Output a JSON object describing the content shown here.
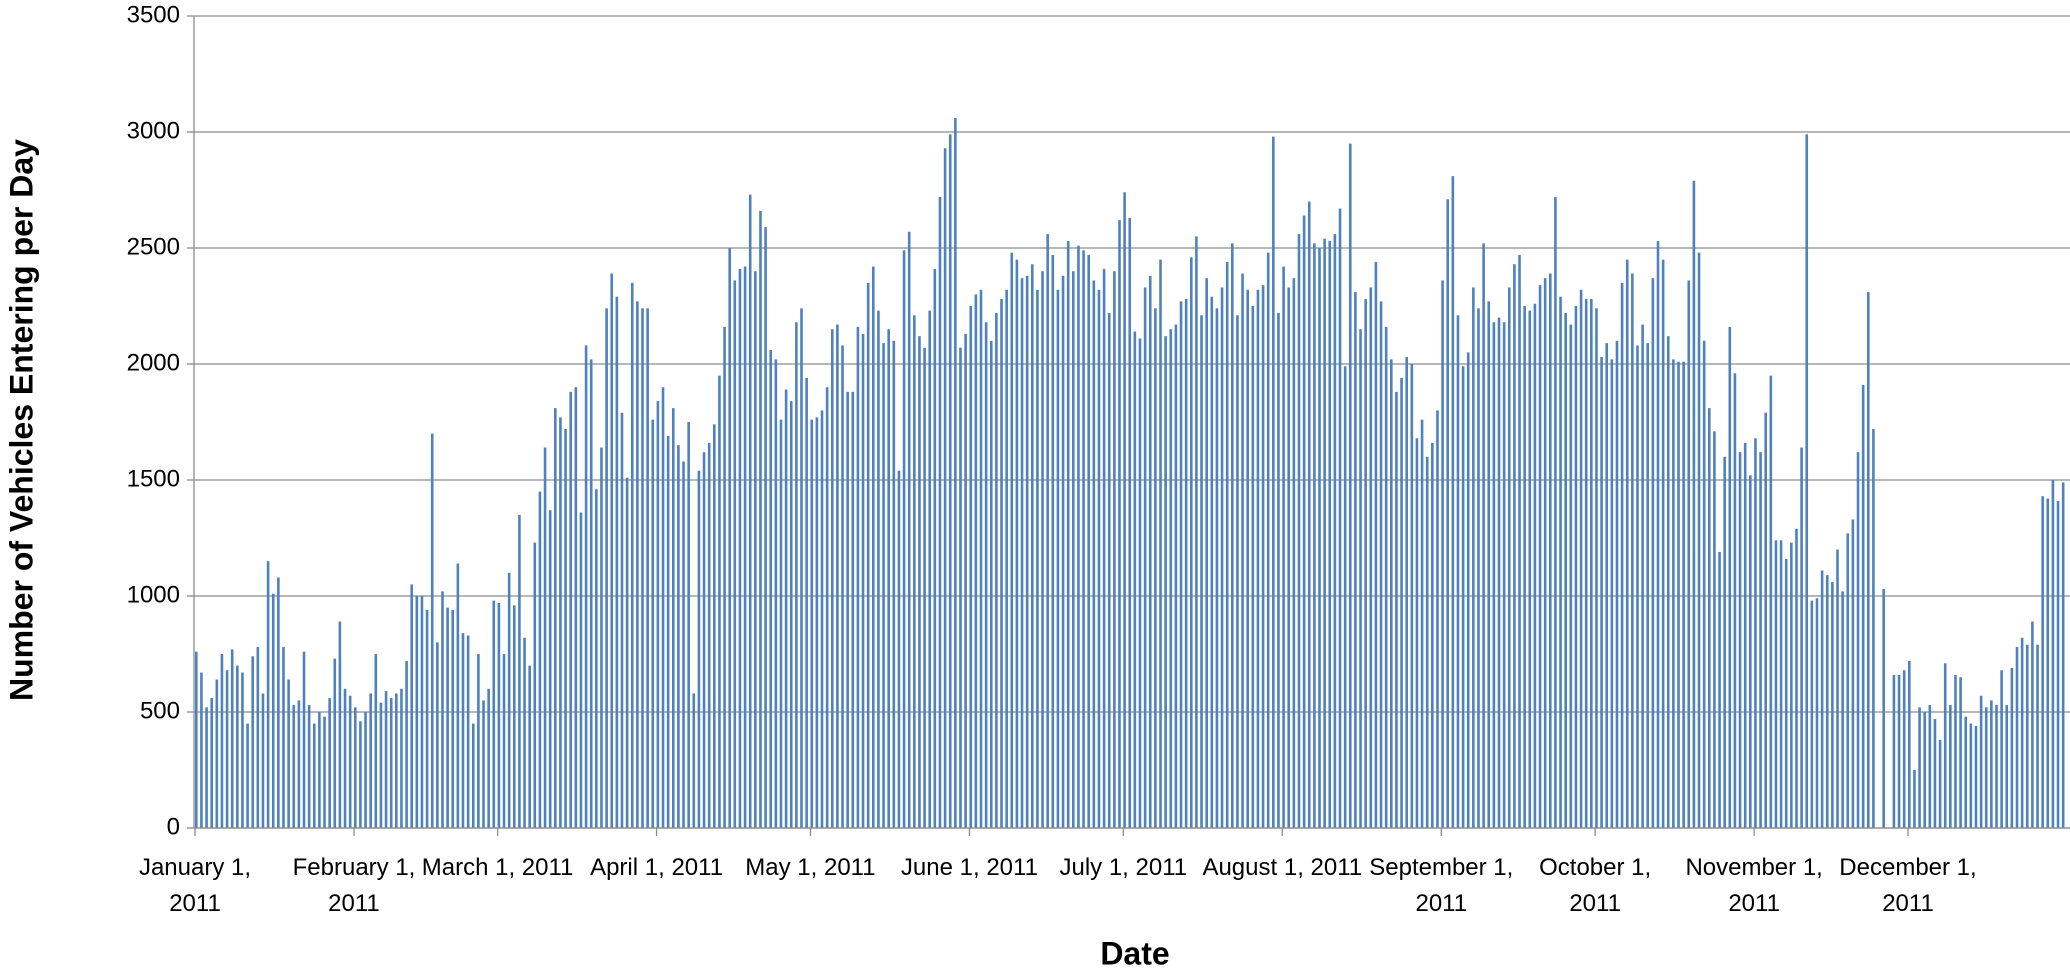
{
  "chart_data": {
    "type": "bar",
    "title": null,
    "x_label": "Date",
    "y_label": "Number of Vehicles Entering per Day",
    "categories": [
      "January 1, 2011",
      null,
      null,
      null,
      null,
      null,
      null,
      null,
      null,
      null,
      null,
      null,
      null,
      null,
      null,
      null,
      null,
      null,
      null,
      null,
      null,
      null,
      null,
      null,
      null,
      null,
      null,
      null,
      null,
      null,
      null,
      "February 1, 2011",
      null,
      null,
      null,
      null,
      null,
      null,
      null,
      null,
      null,
      null,
      null,
      null,
      null,
      null,
      null,
      null,
      null,
      null,
      null,
      null,
      null,
      null,
      null,
      null,
      null,
      null,
      null,
      "March 1, 2011",
      null,
      null,
      null,
      null,
      null,
      null,
      null,
      null,
      null,
      null,
      null,
      null,
      null,
      null,
      null,
      null,
      null,
      null,
      null,
      null,
      null,
      null,
      null,
      null,
      null,
      null,
      null,
      null,
      null,
      null,
      "April 1, 2011",
      null,
      null,
      null,
      null,
      null,
      null,
      null,
      null,
      null,
      null,
      null,
      null,
      null,
      null,
      null,
      null,
      null,
      null,
      null,
      null,
      null,
      null,
      null,
      null,
      null,
      null,
      null,
      null,
      null,
      "May 1, 2011",
      null,
      null,
      null,
      null,
      null,
      null,
      null,
      null,
      null,
      null,
      null,
      null,
      null,
      null,
      null,
      null,
      null,
      null,
      null,
      null,
      null,
      null,
      null,
      null,
      null,
      null,
      null,
      null,
      null,
      null,
      "June 1, 2011",
      null,
      null,
      null,
      null,
      null,
      null,
      null,
      null,
      null,
      null,
      null,
      null,
      null,
      null,
      null,
      null,
      null,
      null,
      null,
      null,
      null,
      null,
      null,
      null,
      null,
      null,
      null,
      null,
      null,
      "July 1, 2011",
      null,
      null,
      null,
      null,
      null,
      null,
      null,
      null,
      null,
      null,
      null,
      null,
      null,
      null,
      null,
      null,
      null,
      null,
      null,
      null,
      null,
      null,
      null,
      null,
      null,
      null,
      null,
      null,
      null,
      null,
      "August 1, 2011",
      null,
      null,
      null,
      null,
      null,
      null,
      null,
      null,
      null,
      null,
      null,
      null,
      null,
      null,
      null,
      null,
      null,
      null,
      null,
      null,
      null,
      null,
      null,
      null,
      null,
      null,
      null,
      null,
      null,
      null,
      "September 1, 2011",
      null,
      null,
      null,
      null,
      null,
      null,
      null,
      null,
      null,
      null,
      null,
      null,
      null,
      null,
      null,
      null,
      null,
      null,
      null,
      null,
      null,
      null,
      null,
      null,
      null,
      null,
      null,
      null,
      null,
      "October 1, 2011",
      null,
      null,
      null,
      null,
      null,
      null,
      null,
      null,
      null,
      null,
      null,
      null,
      null,
      null,
      null,
      null,
      null,
      null,
      null,
      null,
      null,
      null,
      null,
      null,
      null,
      null,
      null,
      null,
      null,
      null,
      "November 1, 2011",
      null,
      null,
      null,
      null,
      null,
      null,
      null,
      null,
      null,
      null,
      null,
      null,
      null,
      null,
      null,
      null,
      null,
      null,
      null,
      null,
      null,
      null,
      null,
      null,
      null,
      null,
      null,
      null,
      null,
      "December 1, 2011",
      null,
      null,
      null,
      null,
      null,
      null,
      null,
      null,
      null,
      null,
      null,
      null,
      null,
      null,
      null,
      null,
      null,
      null,
      null,
      null,
      null,
      null,
      null,
      null,
      null,
      null,
      null,
      null,
      null,
      null
    ],
    "values": [
      760,
      670,
      520,
      560,
      640,
      750,
      680,
      770,
      700,
      670,
      450,
      740,
      780,
      580,
      1150,
      1010,
      1080,
      780,
      640,
      530,
      550,
      760,
      530,
      450,
      500,
      480,
      560,
      730,
      890,
      600,
      570,
      520,
      460,
      500,
      580,
      750,
      540,
      590,
      560,
      580,
      600,
      720,
      1050,
      1000,
      1000,
      940,
      1700,
      800,
      1020,
      950,
      940,
      1140,
      840,
      830,
      450,
      750,
      550,
      600,
      980,
      970,
      750,
      1100,
      960,
      1350,
      820,
      700,
      1230,
      1450,
      1640,
      1370,
      1810,
      1770,
      1720,
      1880,
      1900,
      1360,
      2080,
      2020,
      1460,
      1640,
      2240,
      2390,
      2290,
      1790,
      1510,
      2350,
      2270,
      2240,
      2240,
      1760,
      1840,
      1900,
      1690,
      1810,
      1650,
      1580,
      1750,
      580,
      1540,
      1620,
      1660,
      1740,
      1950,
      2160,
      2500,
      2360,
      2410,
      2420,
      2730,
      2400,
      2660,
      2590,
      2060,
      2020,
      1760,
      1890,
      1840,
      2180,
      2240,
      1940,
      1760,
      1770,
      1800,
      1900,
      2150,
      2170,
      2080,
      1880,
      1880,
      2160,
      2130,
      2350,
      2420,
      2230,
      2090,
      2150,
      2100,
      1540,
      2490,
      2570,
      2210,
      2120,
      2070,
      2230,
      2410,
      2720,
      2930,
      2990,
      3060,
      2070,
      2130,
      2250,
      2300,
      2320,
      2180,
      2100,
      2220,
      2280,
      2320,
      2480,
      2450,
      2370,
      2380,
      2430,
      2320,
      2400,
      2560,
      2470,
      2320,
      2380,
      2530,
      2400,
      2510,
      2490,
      2470,
      2360,
      2320,
      2410,
      2220,
      2400,
      2620,
      2740,
      2630,
      2140,
      2110,
      2330,
      2380,
      2240,
      2450,
      2120,
      2150,
      2170,
      2270,
      2280,
      2460,
      2550,
      2210,
      2370,
      2290,
      2240,
      2330,
      2440,
      2520,
      2210,
      2390,
      2320,
      2250,
      2320,
      2340,
      2480,
      2980,
      2220,
      2420,
      2330,
      2370,
      2560,
      2640,
      2700,
      2520,
      2500,
      2540,
      2530,
      2560,
      2670,
      1990,
      2950,
      2310,
      2150,
      2280,
      2330,
      2440,
      2270,
      2160,
      2020,
      1880,
      1940,
      2030,
      2000,
      1680,
      1760,
      1600,
      1660,
      1800,
      2360,
      2710,
      2810,
      2210,
      1990,
      2050,
      2330,
      2240,
      2520,
      2270,
      2180,
      2200,
      2180,
      2330,
      2430,
      2470,
      2250,
      2230,
      2260,
      2340,
      2370,
      2390,
      2720,
      2290,
      2220,
      2170,
      2250,
      2320,
      2280,
      2280,
      2240,
      2030,
      2090,
      2020,
      2100,
      2350,
      2450,
      2390,
      2080,
      2170,
      2090,
      2370,
      2530,
      2450,
      2120,
      2020,
      2010,
      2010,
      2360,
      2790,
      2480,
      2100,
      1810,
      1710,
      1190,
      1600,
      2160,
      1960,
      1620,
      1660,
      1520,
      1680,
      1620,
      1790,
      1950,
      1240,
      1240,
      1160,
      1230,
      1290,
      1640,
      2990,
      980,
      990,
      1110,
      1090,
      1060,
      1200,
      1020,
      1270,
      1330,
      1620,
      1910,
      2310,
      1720,
      0,
      1030,
      0,
      660,
      660,
      680,
      720,
      250,
      520,
      500,
      530,
      470,
      380,
      710,
      530,
      660,
      650,
      480,
      450,
      440,
      570,
      520,
      550,
      530,
      680,
      530,
      690,
      780,
      820,
      790,
      890,
      790,
      1430,
      1420,
      1500,
      1410,
      1490
    ],
    "color": "#4f81bd",
    "ylim": [
      0,
      3500
    ],
    "yticks": [
      0,
      500,
      1000,
      1500,
      2000,
      2500,
      3000,
      3500
    ],
    "grid": true
  }
}
